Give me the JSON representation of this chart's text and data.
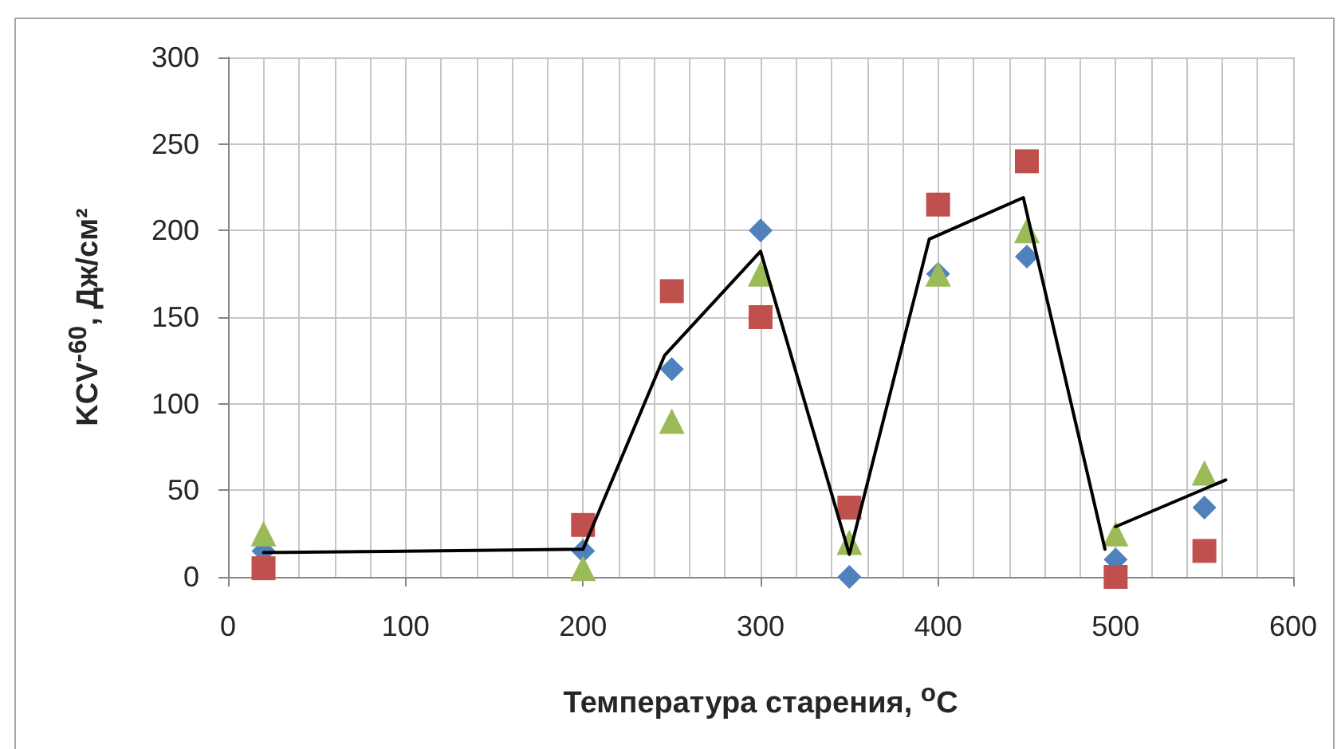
{
  "chart_data": {
    "type": "scatter",
    "xlabel": "Температура старения, $^{o}$C",
    "ylabel": "KCV$^{-60}$, Дж/см²",
    "x": [
      20,
      200,
      250,
      300,
      350,
      400,
      450,
      500,
      550
    ],
    "xlim": [
      0,
      600
    ],
    "xticks": [
      0,
      100,
      200,
      300,
      400,
      500,
      600
    ],
    "ylim": [
      0,
      300
    ],
    "yticks": [
      0,
      50,
      100,
      150,
      200,
      250,
      300
    ],
    "grid": true,
    "series": [
      {
        "color": "#4f81bd",
        "marker": "diamond",
        "values": [
          15,
          15,
          120,
          200,
          0,
          175,
          185,
          10,
          40
        ]
      },
      {
        "color": "#c0504d",
        "marker": "square",
        "values": [
          5,
          30,
          165,
          150,
          40,
          215,
          240,
          0,
          15
        ]
      },
      {
        "color": "#9bbb59",
        "marker": "triangle",
        "values": [
          25,
          5,
          90,
          175,
          20,
          175,
          200,
          25,
          60
        ]
      },
      {
        "type": "line",
        "color": "#000000",
        "marker": "none",
        "x": [
          20,
          200,
          246,
          300,
          350,
          395,
          448,
          494
        ],
        "values": [
          14,
          16,
          128,
          188,
          13,
          195,
          219,
          16
        ]
      },
      {
        "type": "line",
        "color": "#000000",
        "marker": "none",
        "x": [
          500,
          562
        ],
        "values": [
          29,
          56
        ]
      }
    ]
  }
}
